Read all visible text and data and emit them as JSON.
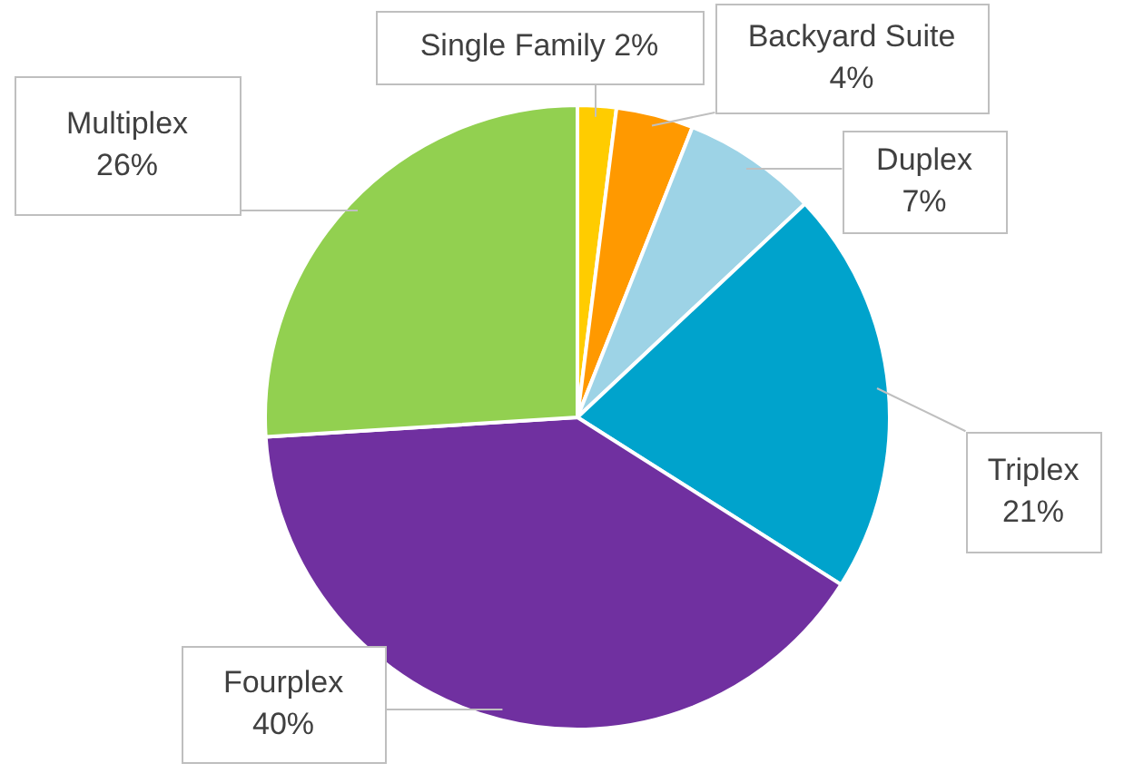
{
  "chart_data": {
    "type": "pie",
    "categories": [
      "Single Family",
      "Backyard Suite",
      "Duplex",
      "Triplex",
      "Fourplex",
      "Multiplex"
    ],
    "values": [
      2,
      4,
      7,
      21,
      40,
      26
    ],
    "value_labels": [
      "2%",
      "4%",
      "7%",
      "21%",
      "40%",
      "26%"
    ],
    "colors": [
      "#ffcc00",
      "#ff9900",
      "#9dd3e6",
      "#00a3cc",
      "#7030a0",
      "#92d050"
    ],
    "legend": false
  }
}
